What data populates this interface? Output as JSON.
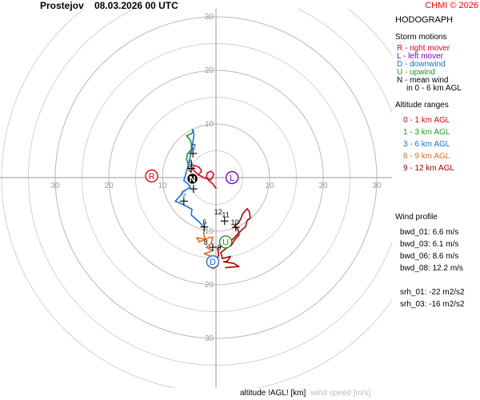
{
  "header": {
    "station": "Prostejov",
    "datetime": "08.03.2026 00 UTC",
    "credit": "CHMI © 2026"
  },
  "panel": {
    "title": "HODOGRAPH",
    "storm_motions_title": "Storm motions",
    "storm_motions": [
      {
        "text": "R - right mover",
        "color": "#e8001c"
      },
      {
        "text": "L - left mover",
        "color": "#8000c0"
      },
      {
        "text": "D - downwind",
        "color": "#1a6fe0"
      },
      {
        "text": "U - upwind",
        "color": "#1a9a1a"
      },
      {
        "text": "N - mean wind",
        "color": "#000000"
      },
      {
        "text": "in 0 - 6 km AGL",
        "color": "#000000"
      }
    ],
    "altitude_title": "Altitude ranges",
    "altitude_ranges": [
      {
        "text": "0 - 1 km AGL",
        "color": "#e8001c"
      },
      {
        "text": "1 - 3 km AGL",
        "color": "#1a9a1a"
      },
      {
        "text": "3 - 6 km AGL",
        "color": "#1a6fe0"
      },
      {
        "text": "6 - 9 km AGL",
        "color": "#e06a20"
      },
      {
        "text": "9 - 12 km AGL",
        "color": "#b00000"
      }
    ],
    "wind_profile_title": "Wind profile",
    "wind_profile": [
      "bwd_01: 6.6 m/s",
      "bwd_03: 6.1 m/s",
      "bwd_06: 8.6 m/s",
      "bwd_08: 12.2 m/s",
      "",
      "srh_01: -22 m2/s2",
      "srh_03: -16 m2/s2"
    ]
  },
  "footer": {
    "altitude_label": "altitude !AGL! [km]",
    "speed_label": "wind speed [m/s]"
  },
  "chart_data": {
    "type": "scatter",
    "grid": true,
    "rings": [
      5,
      10,
      15,
      20,
      25,
      30,
      35,
      40
    ],
    "ring_labels": [
      10,
      20,
      30
    ],
    "x_tick_labels_left": [
      "30",
      "20",
      "10"
    ],
    "x_tick_labels_right": [
      "10",
      "20",
      "30"
    ],
    "y_tick_labels_up": [
      "10",
      "20",
      "30"
    ],
    "y_tick_labels_down": [
      "10",
      "20",
      "30"
    ],
    "xlim": [
      -40,
      40
    ],
    "ylim": [
      -40,
      40
    ],
    "series": [
      {
        "color": "#e8001c",
        "points": [
          [
            0,
            -2
          ],
          [
            -0.6,
            -1.2
          ],
          [
            -1.4,
            -0.5
          ],
          [
            -1.8,
            0.2
          ],
          [
            -1.6,
            0.9
          ],
          [
            -0.9,
            1.2
          ],
          [
            -0.4,
            0.6
          ],
          [
            -0.9,
            -0.4
          ],
          [
            -2.1,
            -0.1
          ],
          [
            -3.4,
            0.6
          ],
          [
            -4.4,
            1.6
          ],
          [
            -4.1,
            2.3
          ],
          [
            -3.1,
            1.9
          ],
          [
            -2.7,
            1.2
          ],
          [
            -3.5,
            0.3
          ],
          [
            -4.4,
            0.7
          ],
          [
            -5.0,
            1.4
          ]
        ]
      },
      {
        "color": "#1a9a1a",
        "points": [
          [
            -5.0,
            1.4
          ],
          [
            -5.2,
            2.5
          ],
          [
            -5.5,
            3.5
          ],
          [
            -5.3,
            4.5
          ],
          [
            -4.6,
            5.2
          ],
          [
            -4.6,
            6.3
          ],
          [
            -4.8,
            7.0
          ],
          [
            -5.5,
            7.8
          ],
          [
            -4.6,
            8.2
          ],
          [
            -4.2,
            8.7
          ],
          [
            -4.4,
            9.0
          ]
        ]
      },
      {
        "color": "#1a6fe0",
        "points": [
          [
            -4.4,
            9.0
          ],
          [
            -4.1,
            8.0
          ],
          [
            -4.4,
            6.0
          ],
          [
            -5.0,
            3.0
          ],
          [
            -6.0,
            -0.6
          ],
          [
            -5.2,
            -1.2
          ],
          [
            -4.8,
            -1.8
          ],
          [
            -6.2,
            -2.6
          ],
          [
            -6.6,
            -3.3
          ],
          [
            -7.6,
            -4.4
          ],
          [
            -6.2,
            -5.0
          ],
          [
            -4.5,
            -5.9
          ],
          [
            -4.6,
            -7.0
          ],
          [
            -3.1,
            -8.3
          ],
          [
            -2.2,
            -9.3
          ]
        ]
      },
      {
        "color": "#e06a20",
        "points": [
          [
            -2.2,
            -9.3
          ],
          [
            -2.3,
            -10.5
          ],
          [
            -2.0,
            -11.5
          ],
          [
            -3.6,
            -11.2
          ],
          [
            -3.1,
            -12.0
          ],
          [
            -1.3,
            -11.2
          ],
          [
            -0.6,
            -11.1
          ],
          [
            -0.9,
            -12.3
          ],
          [
            -1.8,
            -13.0
          ],
          [
            -0.6,
            -13.6
          ],
          [
            -2.2,
            -14.2
          ],
          [
            -0.4,
            -14.9
          ],
          [
            -1.2,
            -15.6
          ],
          [
            -0.6,
            -17.0
          ],
          [
            0.4,
            -16.4
          ],
          [
            -0.1,
            -15.8
          ]
        ]
      },
      {
        "color": "#b00000",
        "points": [
          [
            -0.1,
            -15.8
          ],
          [
            0.5,
            -14.4
          ],
          [
            0.3,
            -13.2
          ],
          [
            0.9,
            -12.9
          ],
          [
            2.8,
            -11.8
          ],
          [
            5.1,
            -9.5
          ],
          [
            5.5,
            -9.2
          ],
          [
            5.8,
            -8.0
          ],
          [
            6.4,
            -7.5
          ],
          [
            6.2,
            -6.3
          ],
          [
            5.8,
            -5.8
          ],
          [
            5.0,
            -6.7
          ],
          [
            4.7,
            -7.5
          ],
          [
            4.2,
            -8.5
          ],
          [
            3.4,
            -9.0
          ],
          [
            4.1,
            -9.7
          ],
          [
            4.3,
            -10.7
          ],
          [
            3.4,
            -11.7
          ],
          [
            2.9,
            -12.6
          ],
          [
            1.9,
            -13.2
          ],
          [
            0.9,
            -14.0
          ],
          [
            1.2,
            -15.1
          ],
          [
            2.7,
            -14.7
          ],
          [
            2.1,
            -15.6
          ],
          [
            1.4,
            -15.7
          ],
          [
            3.3,
            -16.0
          ],
          [
            4.3,
            -16.6
          ],
          [
            2.9,
            -16.7
          ],
          [
            1.8,
            -16.8
          ]
        ]
      }
    ],
    "altitude_markers": [
      {
        "label": "1",
        "x": -4.6,
        "y": 2.4,
        "color": "#000000"
      },
      {
        "label": "2",
        "x": -4.1,
        "y": 5.3,
        "color": "#000000"
      },
      {
        "label": "3",
        "x": -4.7,
        "y": 2.0,
        "color": "#000000"
      },
      {
        "label": "5",
        "x": -6.0,
        "y": -3.5,
        "color": "#1a6fe0"
      },
      {
        "label": "6",
        "x": -2.1,
        "y": -8.7,
        "color": "#000000"
      },
      {
        "label": "8",
        "x": -1.9,
        "y": -12.5,
        "color": "#000000"
      },
      {
        "label": "9",
        "x": 0.6,
        "y": -13.5,
        "color": "#000000"
      },
      {
        "label": "10",
        "x": 3.5,
        "y": -8.8,
        "color": "#000000"
      },
      {
        "label": "11",
        "x": 1.8,
        "y": -7.4,
        "color": "#000000"
      },
      {
        "label": "12",
        "x": 0.4,
        "y": -6.9,
        "color": "#000000"
      }
    ],
    "crosses": [
      [
        -4.3,
        4.5
      ],
      [
        -4.6,
        1.7
      ],
      [
        -4.2,
        -2.1
      ],
      [
        -6.0,
        -4.4
      ],
      [
        -2.2,
        -9.2
      ],
      [
        -0.6,
        -13.0
      ],
      [
        1.6,
        -8.1
      ],
      [
        3.7,
        -9.3
      ]
    ],
    "storm_markers": [
      {
        "label": "R",
        "x": -12.0,
        "y": 0.3,
        "color": "#e8001c"
      },
      {
        "label": "L",
        "x": 3.0,
        "y": 0.0,
        "color": "#8000c0"
      },
      {
        "label": "D",
        "x": -0.6,
        "y": -15.7,
        "color": "#1a6fe0"
      },
      {
        "label": "U",
        "x": 1.8,
        "y": -12.0,
        "color": "#1a9a1a"
      },
      {
        "label": "N",
        "x": -4.4,
        "y": -0.2,
        "color": "#000000"
      }
    ]
  }
}
